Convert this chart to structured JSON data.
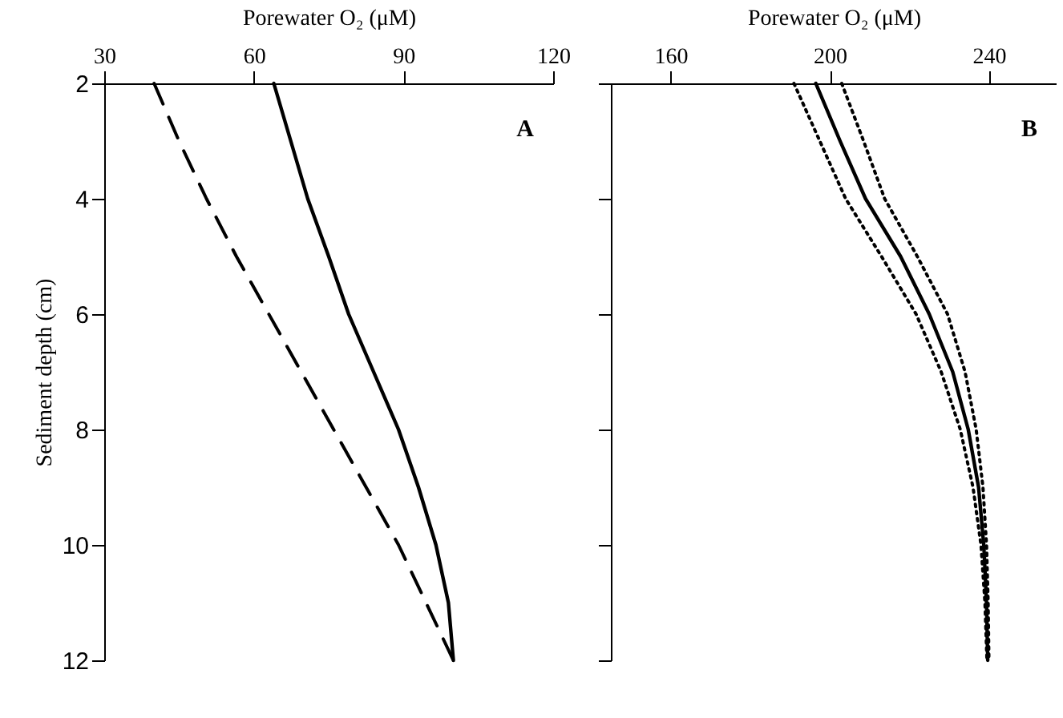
{
  "chart_data": [
    {
      "type": "line",
      "xlabel": "Porewater O₂ (μM)",
      "ylabel": "Sediment depth (cm)",
      "xlim": [
        30,
        120
      ],
      "xticks": [
        30,
        60,
        90,
        120
      ],
      "ylim": [
        12,
        2
      ],
      "yticks": [
        2,
        4,
        6,
        8,
        10,
        12
      ],
      "grid": false,
      "annotations": [
        "A"
      ],
      "series": [
        {
          "color": "#000000",
          "line_style": "solid",
          "x": [
            64,
            67.4,
            70.8,
            75,
            79,
            84,
            89,
            93,
            96.5,
            99,
            100
          ],
          "values": [
            2,
            3,
            4,
            5,
            6,
            7,
            8,
            9,
            10,
            11,
            12
          ]
        },
        {
          "color": "#000000",
          "line_style": "dashed",
          "x": [
            40,
            45,
            50.5,
            56.5,
            63,
            69.5,
            76,
            82.5,
            89,
            94.5,
            100
          ],
          "values": [
            2,
            3,
            4,
            5,
            6,
            7,
            8,
            9,
            10,
            11,
            12
          ]
        }
      ]
    },
    {
      "type": "line",
      "xlabel": "Porewater O₂ (μM)",
      "xlim": [
        145,
        257
      ],
      "xticks": [
        160,
        200,
        240
      ],
      "ylim": [
        12,
        2
      ],
      "yticks": [
        2,
        4,
        6,
        8,
        10,
        12
      ],
      "tick_labels": "x",
      "grid": false,
      "annotations": [
        "B"
      ],
      "series": [
        {
          "color": "#000000",
          "line_style": "solid",
          "x": [
            196.5,
            202.6,
            209,
            217.8,
            225,
            230.9,
            234.8,
            237.4,
            238.7,
            239.4,
            239.7
          ],
          "values": [
            2,
            3,
            4,
            5,
            6,
            7,
            8,
            9,
            10,
            11,
            12
          ]
        },
        {
          "color": "#000000",
          "line_style": "dotted",
          "x": [
            191,
            197.5,
            204,
            213,
            221.7,
            228,
            232.8,
            236,
            238,
            239,
            239.5
          ],
          "values": [
            2,
            3,
            4,
            5,
            6,
            7,
            8,
            9,
            10,
            11,
            12
          ]
        },
        {
          "color": "#000000",
          "line_style": "dotted",
          "x": [
            203,
            208.5,
            213.8,
            222,
            229.6,
            234,
            236.8,
            238.5,
            239.4,
            239.8,
            240
          ],
          "values": [
            2,
            3,
            4,
            5,
            6,
            7,
            8,
            9,
            10,
            11,
            12
          ]
        }
      ]
    }
  ]
}
